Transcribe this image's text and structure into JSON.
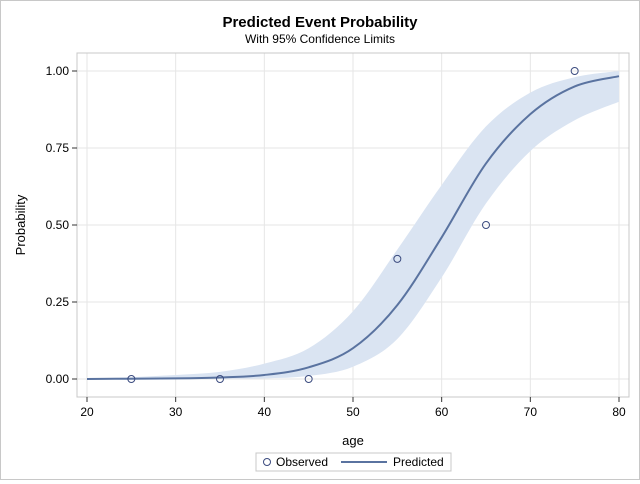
{
  "chart_data": {
    "type": "line",
    "title": "Predicted Event Probability",
    "subtitle": "With 95% Confidence Limits",
    "xlabel": "age",
    "ylabel": "Probability",
    "xlim": [
      20,
      80
    ],
    "ylim": [
      0,
      1
    ],
    "xticks": [
      20,
      30,
      40,
      50,
      60,
      70,
      80
    ],
    "yticks": [
      0,
      0.25,
      0.5,
      0.75,
      1.0
    ],
    "xtick_labels": [
      "20",
      "30",
      "40",
      "50",
      "60",
      "70",
      "80"
    ],
    "ytick_labels": [
      "0.00",
      "0.25",
      "0.50",
      "0.75",
      "1.00"
    ],
    "grid": true,
    "legend": {
      "position": "bottom-center",
      "entries": [
        "Observed",
        "Predicted"
      ]
    },
    "colors": {
      "line": "#5a73a0",
      "band": "#dae4f2",
      "marker": "#3b4b7f",
      "grid": "#e6e6e6"
    },
    "series": [
      {
        "name": "Observed",
        "kind": "scatter",
        "x": [
          25,
          35,
          45,
          55,
          65,
          75
        ],
        "y": [
          0.0,
          0.0,
          0.0,
          0.39,
          0.5,
          1.0
        ]
      },
      {
        "name": "Predicted",
        "kind": "line",
        "x": [
          20,
          25,
          30,
          35,
          40,
          45,
          50,
          55,
          60,
          65,
          70,
          75,
          80
        ],
        "y": [
          0.0,
          0.001,
          0.002,
          0.005,
          0.013,
          0.038,
          0.1,
          0.24,
          0.46,
          0.7,
          0.86,
          0.95,
          0.983
        ],
        "lower": [
          0.0,
          0.0,
          0.0,
          0.001,
          0.002,
          0.01,
          0.04,
          0.13,
          0.33,
          0.57,
          0.74,
          0.84,
          0.9
        ],
        "upper": [
          0.0,
          0.006,
          0.013,
          0.023,
          0.05,
          0.1,
          0.22,
          0.42,
          0.63,
          0.82,
          0.93,
          0.98,
          1.0
        ]
      }
    ]
  }
}
